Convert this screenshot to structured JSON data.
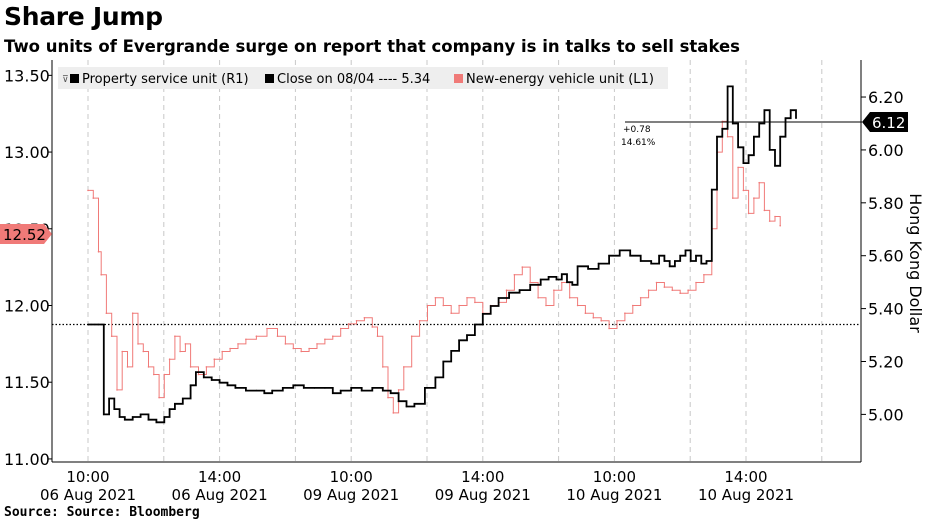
{
  "title": "Share Jump",
  "subtitle": "Two units of Evergrande surge on report that company is in talks to sell stakes",
  "source": "Source: Source: Bloomberg",
  "chart_data": {
    "type": "line",
    "legend": {
      "placement": "top-left",
      "entries": [
        {
          "label": "Property service unit (R1)",
          "color": "#000000"
        },
        {
          "label": "Close on 08/04 ---- 5.34",
          "color": "#000000"
        },
        {
          "label": "New-energy vehicle unit (L1)",
          "color": "#f07a78"
        }
      ]
    },
    "x_ticks": [
      {
        "time": "10:00",
        "date": "06 Aug 2021"
      },
      {
        "time": "14:00",
        "date": "06 Aug 2021"
      },
      {
        "time": "10:00",
        "date": "09 Aug 2021"
      },
      {
        "time": "14:00",
        "date": "09 Aug 2021"
      },
      {
        "time": "10:00",
        "date": "10 Aug 2021"
      },
      {
        "time": "14:00",
        "date": "10 Aug 2021"
      }
    ],
    "left_axis": {
      "ticks": [
        "11.00",
        "11.50",
        "12.00",
        "12.50",
        "13.00",
        "13.50"
      ],
      "range": [
        10.98,
        13.6
      ]
    },
    "right_axis": {
      "label": "Hong Kong Dollar",
      "ticks": [
        "5.00",
        "5.20",
        "5.40",
        "5.60",
        "5.80",
        "6.00",
        "6.20"
      ],
      "range": [
        4.82,
        6.34
      ]
    },
    "reference_line": {
      "value": 5.34,
      "axis": "right",
      "style": "dotted"
    },
    "last_value_labels": {
      "left": {
        "value": "12.52",
        "color": "#f07a78"
      },
      "right": {
        "value": "6.12",
        "color": "#000000"
      }
    },
    "annotation": {
      "change": "+0.78",
      "percent": "14.61%"
    },
    "series": [
      {
        "name": "Property service unit (R1)",
        "axis": "right",
        "color": "#000000",
        "x": [
          0.0,
          0.08,
          0.12,
          0.16,
          0.2,
          0.24,
          0.28,
          0.34,
          0.4,
          0.46,
          0.52,
          0.58,
          0.62,
          0.66,
          0.72,
          0.78,
          0.82,
          0.88,
          0.94,
          1.0,
          1.06,
          1.12,
          1.2,
          1.28,
          1.34,
          1.4,
          1.48,
          1.56,
          1.64,
          1.72,
          1.8,
          1.86,
          1.92,
          2.0,
          2.08,
          2.16,
          2.24,
          2.3,
          2.36,
          2.42,
          2.48,
          2.56,
          2.64,
          2.7,
          2.76,
          2.82,
          2.88,
          2.94,
          3.0,
          3.06,
          3.12,
          3.2,
          3.28,
          3.36,
          3.44,
          3.5,
          3.56,
          3.6,
          3.64,
          3.68,
          3.72,
          3.8,
          3.88,
          3.96,
          4.04,
          4.12,
          4.2,
          4.28,
          4.34,
          4.38,
          4.42,
          4.46,
          4.5,
          4.54,
          4.58,
          4.62,
          4.66,
          4.7,
          4.74,
          4.78,
          4.82,
          4.86,
          4.9,
          4.94,
          4.98,
          5.02,
          5.06,
          5.1,
          5.14,
          5.18,
          5.22,
          5.26,
          5.3,
          5.34,
          5.38
        ],
        "values": [
          5.34,
          5.34,
          5.0,
          5.06,
          5.02,
          4.99,
          4.98,
          4.99,
          5.0,
          4.98,
          4.97,
          4.99,
          5.02,
          5.04,
          5.06,
          5.11,
          5.16,
          5.14,
          5.13,
          5.12,
          5.11,
          5.1,
          5.09,
          5.09,
          5.08,
          5.09,
          5.1,
          5.11,
          5.1,
          5.1,
          5.1,
          5.08,
          5.09,
          5.1,
          5.09,
          5.1,
          5.09,
          5.08,
          5.05,
          5.03,
          5.04,
          5.1,
          5.14,
          5.2,
          5.24,
          5.28,
          5.3,
          5.34,
          5.38,
          5.41,
          5.44,
          5.46,
          5.47,
          5.49,
          5.51,
          5.52,
          5.51,
          5.53,
          5.5,
          5.49,
          5.56,
          5.55,
          5.57,
          5.6,
          5.62,
          5.6,
          5.58,
          5.57,
          5.6,
          5.58,
          5.56,
          5.58,
          5.6,
          5.62,
          5.58,
          5.6,
          5.57,
          5.58,
          5.85,
          6.05,
          6.08,
          6.24,
          6.1,
          6.01,
          5.95,
          5.98,
          6.05,
          6.1,
          6.15,
          6.0,
          5.94,
          6.05,
          6.12,
          6.15,
          6.12
        ]
      },
      {
        "name": "New-energy vehicle unit (L1)",
        "axis": "left",
        "color": "#f07a78",
        "x": [
          0.0,
          0.04,
          0.08,
          0.1,
          0.14,
          0.18,
          0.22,
          0.26,
          0.3,
          0.34,
          0.38,
          0.42,
          0.46,
          0.5,
          0.54,
          0.58,
          0.62,
          0.66,
          0.7,
          0.74,
          0.78,
          0.84,
          0.9,
          0.96,
          1.02,
          1.08,
          1.14,
          1.2,
          1.28,
          1.36,
          1.44,
          1.5,
          1.56,
          1.62,
          1.68,
          1.74,
          1.8,
          1.86,
          1.92,
          1.98,
          2.04,
          2.1,
          2.16,
          2.2,
          2.24,
          2.28,
          2.32,
          2.36,
          2.4,
          2.46,
          2.52,
          2.58,
          2.64,
          2.7,
          2.76,
          2.82,
          2.88,
          2.94,
          3.0,
          3.06,
          3.12,
          3.18,
          3.24,
          3.3,
          3.36,
          3.42,
          3.48,
          3.54,
          3.6,
          3.66,
          3.72,
          3.78,
          3.84,
          3.9,
          3.96,
          4.02,
          4.08,
          4.14,
          4.2,
          4.26,
          4.32,
          4.38,
          4.44,
          4.5,
          4.56,
          4.62,
          4.68,
          4.74,
          4.78,
          4.82,
          4.86,
          4.9,
          4.94,
          4.98,
          5.02,
          5.06,
          5.1,
          5.14,
          5.18,
          5.22,
          5.26
        ],
        "values": [
          12.75,
          12.7,
          12.35,
          12.2,
          11.95,
          11.8,
          11.45,
          11.7,
          11.6,
          11.95,
          11.75,
          11.7,
          11.6,
          11.55,
          11.4,
          11.55,
          11.65,
          11.8,
          11.7,
          11.75,
          11.6,
          11.55,
          11.6,
          11.65,
          11.7,
          11.72,
          11.75,
          11.78,
          11.8,
          11.85,
          11.8,
          11.75,
          11.72,
          11.7,
          11.72,
          11.75,
          11.78,
          11.8,
          11.85,
          11.88,
          11.9,
          11.92,
          11.86,
          11.8,
          11.6,
          11.4,
          11.3,
          11.45,
          11.6,
          11.8,
          11.9,
          12.0,
          12.05,
          12.0,
          11.95,
          12.0,
          12.05,
          12.02,
          11.95,
          12.0,
          12.02,
          12.1,
          12.2,
          12.25,
          12.15,
          12.05,
          12.0,
          12.1,
          12.15,
          12.05,
          12.0,
          11.95,
          11.92,
          11.9,
          11.85,
          11.9,
          11.95,
          12.0,
          12.05,
          12.1,
          12.15,
          12.12,
          12.1,
          12.08,
          12.1,
          12.15,
          12.2,
          12.5,
          13.0,
          13.2,
          13.1,
          12.7,
          12.9,
          12.75,
          12.6,
          12.7,
          12.8,
          12.62,
          12.55,
          12.58,
          12.52
        ]
      }
    ]
  }
}
